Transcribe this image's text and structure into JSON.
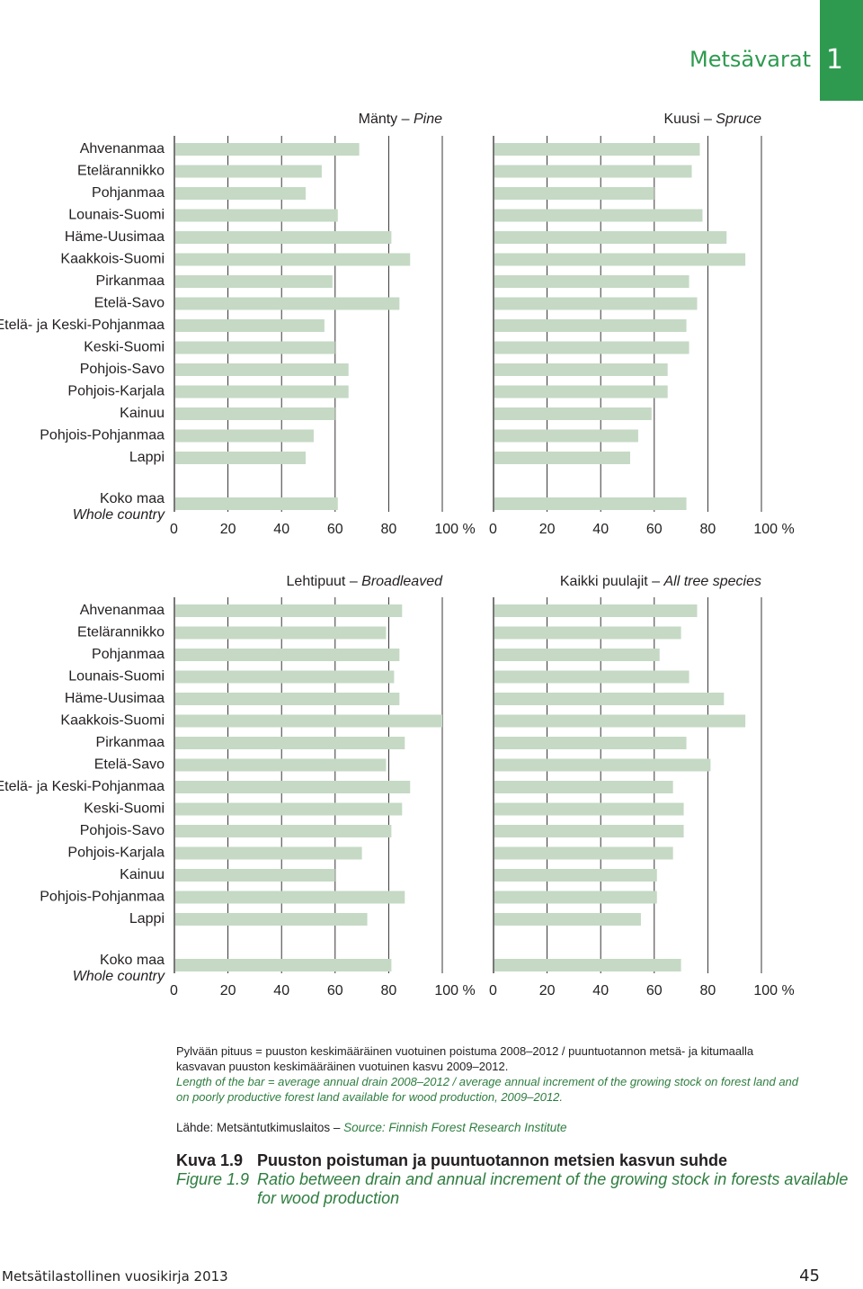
{
  "header": {
    "section_title": "Metsävarat",
    "chapter_number": "1",
    "accent_color": "#2e9a4f"
  },
  "regions": [
    "Ahvenanmaa",
    "Etelärannikko",
    "Pohjanmaa",
    "Lounais-Suomi",
    "Häme-Uusimaa",
    "Kaakkois-Suomi",
    "Pirkanmaa",
    "Etelä-Savo",
    "Etelä- ja Keski-Pohjanmaa",
    "Keski-Suomi",
    "Pohjois-Savo",
    "Pohjois-Karjala",
    "Kainuu",
    "Pohjois-Pohjanmaa",
    "Lappi"
  ],
  "total_label_fi": "Koko maa",
  "total_label_en": "Whole country",
  "chart_data": [
    {
      "type": "bar",
      "orientation": "horizontal",
      "title_fi": "Mänty",
      "title_en": "Pine",
      "values": [
        69,
        55,
        49,
        61,
        81,
        88,
        59,
        84,
        56,
        60,
        65,
        65,
        60,
        52,
        49
      ],
      "total": 61,
      "xlim": [
        0,
        100
      ],
      "xticks": [
        "0",
        "20",
        "40",
        "60",
        "80",
        "100 %"
      ],
      "bar_color": "#c5d9c5",
      "grid": true
    },
    {
      "type": "bar",
      "orientation": "horizontal",
      "title_fi": "Kuusi",
      "title_en": "Spruce",
      "values": [
        77,
        74,
        60,
        78,
        87,
        94,
        73,
        76,
        72,
        73,
        65,
        65,
        59,
        54,
        51
      ],
      "total": 72,
      "xlim": [
        0,
        100
      ],
      "xticks": [
        "0",
        "20",
        "40",
        "60",
        "80",
        "100 %"
      ],
      "bar_color": "#c5d9c5",
      "grid": true
    },
    {
      "type": "bar",
      "orientation": "horizontal",
      "title_fi": "Lehtipuut",
      "title_en": "Broadleaved",
      "values": [
        85,
        79,
        84,
        82,
        84,
        100,
        86,
        79,
        88,
        85,
        81,
        70,
        60,
        86,
        72
      ],
      "total": 81,
      "xlim": [
        0,
        100
      ],
      "xticks": [
        "0",
        "20",
        "40",
        "60",
        "80",
        "100 %"
      ],
      "bar_color": "#c5d9c5",
      "grid": true
    },
    {
      "type": "bar",
      "orientation": "horizontal",
      "title_fi": "Kaikki puulajit",
      "title_en": "All tree species",
      "values": [
        76,
        70,
        62,
        73,
        86,
        94,
        72,
        81,
        67,
        71,
        71,
        67,
        61,
        61,
        55
      ],
      "total": 70,
      "xlim": [
        0,
        100
      ],
      "xticks": [
        "0",
        "20",
        "40",
        "60",
        "80",
        "100 %"
      ],
      "bar_color": "#c5d9c5",
      "grid": true
    }
  ],
  "notes": {
    "fi": "Pylvään pituus  =  puuston keskimääräinen vuotuinen poistuma 2008–2012 / puuntuotannon metsä- ja kitumaalla kasvavan puuston keskimääräinen vuotuinen kasvu 2009–2012.",
    "en": "Length of the bar = average annual drain 2008–2012 / average annual increment of the growing stock on forest land and on poorly productive forest land available for wood production, 2009–2012."
  },
  "source": {
    "fi": "Lähde: Metsäntutkimuslaitos –",
    "en": "Source: Finnish Forest Research Institute"
  },
  "caption": {
    "label_fi": "Kuva 1.9",
    "title_fi": "Puuston poistuman ja puuntuotannon metsien kasvun suhde",
    "label_en": "Figure 1.9",
    "title_en": "Ratio between drain and annual increment of the growing stock in forests available for wood production"
  },
  "footer": {
    "publication": "Metsätilastollinen vuosikirja 2013",
    "page_number": "45"
  }
}
